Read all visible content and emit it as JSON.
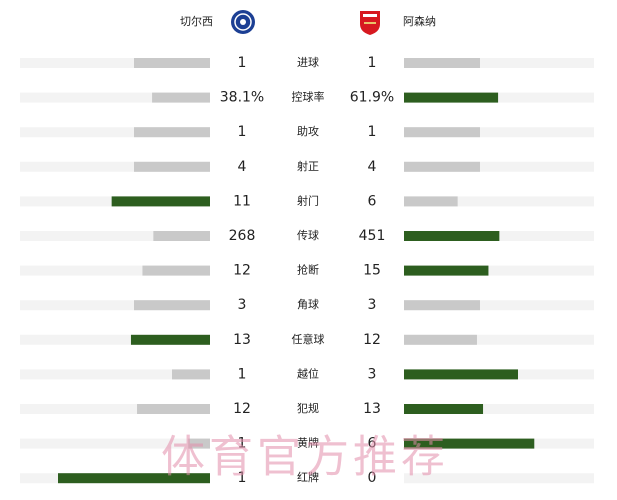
{
  "header": {
    "home_team": "切尔西",
    "away_team": "阿森纳"
  },
  "stats": [
    {
      "label": "进球",
      "home": 1,
      "away": 1
    },
    {
      "label": "控球率",
      "home": 38.1,
      "away": 61.9,
      "home_label": "38.1%",
      "away_label": "61.9%"
    },
    {
      "label": "助攻",
      "home": 1,
      "away": 1
    },
    {
      "label": "射正",
      "home": 4,
      "away": 4
    },
    {
      "label": "射门",
      "home": 11,
      "away": 6
    },
    {
      "label": "传球",
      "home": 268,
      "away": 451
    },
    {
      "label": "抢断",
      "home": 12,
      "away": 15
    },
    {
      "label": "角球",
      "home": 3,
      "away": 3
    },
    {
      "label": "任意球",
      "home": 13,
      "away": 12
    },
    {
      "label": "越位",
      "home": 1,
      "away": 3
    },
    {
      "label": "犯规",
      "home": 12,
      "away": 13
    },
    {
      "label": "黄牌",
      "home": 1,
      "away": 6
    },
    {
      "label": "红牌",
      "home": 1,
      "away": 0
    }
  ],
  "watermark": "体育官方推荐"
}
